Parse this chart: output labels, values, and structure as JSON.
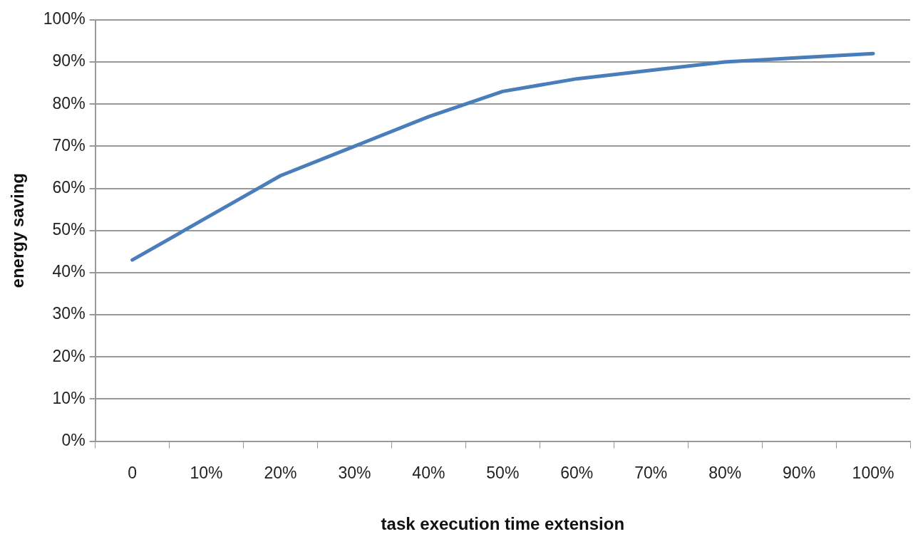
{
  "chart_data": {
    "type": "line",
    "xlabel": "task execution time extension",
    "ylabel": "energy saving",
    "categories": [
      "0",
      "10%",
      "20%",
      "30%",
      "40%",
      "50%",
      "60%",
      "70%",
      "80%",
      "90%",
      "100%"
    ],
    "series": [
      {
        "color": "#4a7ebb",
        "values": [
          43,
          53,
          63,
          70,
          77,
          83,
          86,
          88,
          90,
          91,
          92
        ]
      }
    ],
    "ylim": [
      0,
      100
    ],
    "yticks": [
      {
        "value": 0,
        "label": "0%"
      },
      {
        "value": 10,
        "label": "10%"
      },
      {
        "value": 20,
        "label": "20%"
      },
      {
        "value": 30,
        "label": "30%"
      },
      {
        "value": 40,
        "label": "40%"
      },
      {
        "value": 50,
        "label": "50%"
      },
      {
        "value": 60,
        "label": "60%"
      },
      {
        "value": 70,
        "label": "70%"
      },
      {
        "value": 80,
        "label": "80%"
      },
      {
        "value": 90,
        "label": "90%"
      },
      {
        "value": 100,
        "label": "100%"
      }
    ],
    "grid": "y",
    "legend": false,
    "marker": "none",
    "line_style": "solid"
  }
}
